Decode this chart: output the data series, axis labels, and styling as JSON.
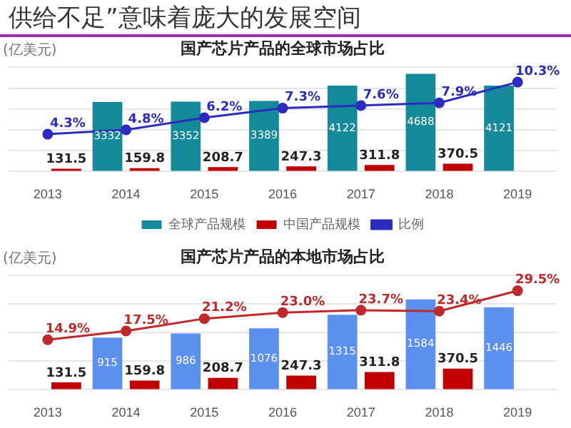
{
  "chart_data": [
    {
      "type": "bar",
      "title": "国产芯片产品的全球市场占比",
      "ylabel": "(亿美元)",
      "annotations": [
        "供给不足”意味着庞大的发展空间"
      ],
      "categories": [
        "2013",
        "2014",
        "2015",
        "2016",
        "2017",
        "2018",
        "2019"
      ],
      "series": [
        {
          "name": "全球产品规模",
          "color": "#13899a",
          "values": [
            null,
            3332,
            3352,
            3389,
            4122,
            4688,
            4121
          ],
          "value_labels": [
            null,
            "3332",
            "3352",
            "3389",
            "4122",
            "4688",
            "4121"
          ]
        },
        {
          "name": "中国产品规模",
          "color": "#c00000",
          "values": [
            131.5,
            159.8,
            208.7,
            247.3,
            311.8,
            370.5,
            null
          ],
          "value_labels": [
            "131.5",
            "159.8",
            "208.7",
            "247.3",
            "311.8",
            "370.5",
            null
          ]
        },
        {
          "name": "比例",
          "type": "line",
          "axis": "y2",
          "color": "#2b2bbf",
          "values": [
            4.3,
            4.8,
            6.2,
            7.3,
            7.6,
            7.9,
            10.3
          ],
          "value_labels": [
            "4.3%",
            "4.8%",
            "6.2%",
            "7.3%",
            "7.6%",
            "7.9%",
            "10.3%"
          ]
        }
      ],
      "ylim": [
        0,
        5000
      ],
      "yticks": [
        {
          "value": 0,
          "label": null
        },
        {
          "value": 1000,
          "label": null
        },
        {
          "value": 2000,
          "label": null
        },
        {
          "value": 3000,
          "label": null
        },
        {
          "value": 4000,
          "label": null
        },
        {
          "value": 5000,
          "label": null
        }
      ],
      "y2lim": [
        0,
        12
      ],
      "tick_labels": "x",
      "grid": "y",
      "legend": "bottom",
      "marker": "circle"
    },
    {
      "type": "bar",
      "title": "国产芯片产品的本地市场占比",
      "ylabel": "(亿美元)",
      "categories": [
        "2013",
        "2014",
        "2015",
        "2016",
        "2017",
        "2018",
        "2019"
      ],
      "series": [
        {
          "color": "#5b8ff0",
          "values": [
            null,
            915,
            986,
            1076,
            1315,
            1584,
            1446
          ],
          "value_labels": [
            null,
            "915",
            "986",
            "1076",
            "1315",
            "1584",
            "1446"
          ]
        },
        {
          "color": "#c00000",
          "values": [
            131.5,
            159.8,
            208.7,
            247.3,
            311.8,
            370.5,
            null
          ],
          "value_labels": [
            "131.5",
            "159.8",
            "208.7",
            "247.3",
            "311.8",
            "370.5",
            null
          ]
        },
        {
          "type": "line",
          "axis": "y2",
          "color": "#c0282a",
          "values": [
            14.9,
            17.5,
            21.2,
            23.0,
            23.7,
            23.4,
            29.5
          ],
          "value_labels": [
            "14.9%",
            "17.5%",
            "21.2%",
            "23.0%",
            "23.7%",
            "23.4%",
            "29.5%"
          ]
        }
      ],
      "ylim": [
        0,
        2000
      ],
      "yticks": [
        {
          "value": 0,
          "label": null
        },
        {
          "value": 500,
          "label": null
        },
        {
          "value": 1000,
          "label": null
        },
        {
          "value": 1500,
          "label": null
        },
        {
          "value": 2000,
          "label": null
        }
      ],
      "y2lim": [
        0,
        34
      ],
      "tick_labels": "x",
      "grid": "y",
      "marker": "circle"
    }
  ]
}
